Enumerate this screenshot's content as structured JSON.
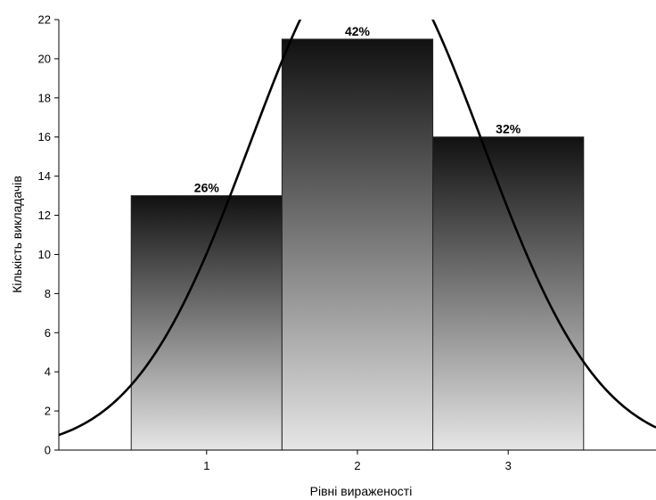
{
  "chart_data": {
    "type": "bar",
    "categories": [
      "1",
      "2",
      "3"
    ],
    "values": [
      13,
      21,
      16
    ],
    "data_labels": [
      "26%",
      "42%",
      "32%"
    ],
    "xlabel": "Рівні вираженості",
    "ylabel": "Кількість викладачів",
    "ylim": [
      0,
      22
    ],
    "y_ticks": [
      0,
      2,
      4,
      6,
      8,
      10,
      12,
      14,
      16,
      18,
      20,
      22
    ],
    "x_range": [
      0.02,
      3.98
    ],
    "grid": false,
    "legend": "none",
    "overlay_curve": {
      "type": "normal",
      "mean": 2.06,
      "sd": 0.77,
      "peak": 25.9
    },
    "colors": {
      "bar_gradient_top": "#111111",
      "bar_gradient_bottom": "#e6e6e6",
      "bar_border": "#222222",
      "curve": "#000000",
      "axis": "#000000"
    }
  }
}
